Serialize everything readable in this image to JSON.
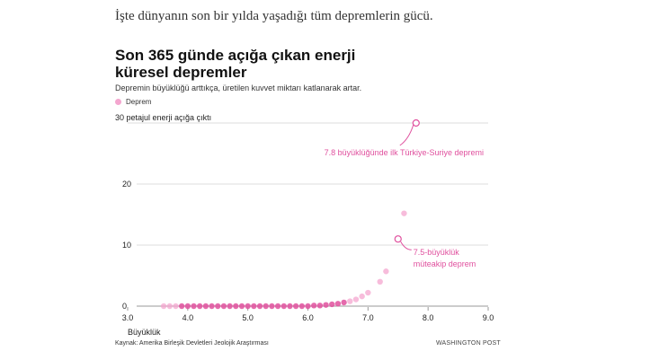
{
  "intro_text": "İşte dünyanın son bir yılda yaşadığı tüm depremlerin gücü.",
  "source": "Kaynak: Amerika Birleşik Devletleri Jeolojik Araştırması",
  "credit": "WASHINGTON POST",
  "colors": {
    "accent": "#e0509e",
    "point_light": "#f4a6cf",
    "grid": "#dddddd"
  },
  "chart_data": {
    "type": "scatter",
    "title": "Son 365 günde açığa çıkan enerji küresel depremler",
    "subtitle": "Depremin büyüklüğü arttıkça, üretilen kuvvet miktarı katlanarak artar.",
    "legend": [
      "Deprem"
    ],
    "xlabel": "Büyüklük",
    "ylabel_top": "30 petajul enerji açığa çıktı",
    "xlim": [
      3.0,
      9.0
    ],
    "ylim": [
      0,
      30
    ],
    "x_ticks": [
      "3.0",
      "4.0",
      "5.0",
      "6.0",
      "7.0",
      "8.0",
      "9.0"
    ],
    "y_ticks": [
      "0",
      "10",
      "20"
    ],
    "grid": true,
    "series": [
      {
        "name": "Deprem",
        "points": [
          [
            3.6,
            0
          ],
          [
            3.7,
            0
          ],
          [
            3.8,
            0
          ],
          [
            3.9,
            0
          ],
          [
            4.0,
            0
          ],
          [
            4.1,
            0
          ],
          [
            4.2,
            0
          ],
          [
            4.3,
            0
          ],
          [
            4.4,
            0
          ],
          [
            4.5,
            0
          ],
          [
            4.6,
            0
          ],
          [
            4.7,
            0
          ],
          [
            4.8,
            0
          ],
          [
            4.9,
            0
          ],
          [
            5.0,
            0
          ],
          [
            5.1,
            0
          ],
          [
            5.2,
            0
          ],
          [
            5.3,
            0
          ],
          [
            5.4,
            0
          ],
          [
            5.5,
            0
          ],
          [
            5.6,
            0
          ],
          [
            5.7,
            0
          ],
          [
            5.8,
            0
          ],
          [
            5.9,
            0
          ],
          [
            6.0,
            0
          ],
          [
            6.1,
            0.1
          ],
          [
            6.2,
            0.1
          ],
          [
            6.3,
            0.2
          ],
          [
            6.4,
            0.3
          ],
          [
            6.5,
            0.4
          ],
          [
            6.6,
            0.6
          ],
          [
            6.7,
            0.8
          ],
          [
            6.8,
            1.1
          ],
          [
            6.9,
            1.6
          ],
          [
            7.0,
            2.2
          ],
          [
            7.2,
            4.0
          ],
          [
            7.3,
            5.7
          ],
          [
            7.5,
            11.0
          ],
          [
            7.6,
            15.2
          ],
          [
            7.8,
            30.0
          ]
        ]
      }
    ],
    "annotations": [
      {
        "text": "7.8 büyüklüğünde ilk Türkiye-Suriye depremi",
        "x": 7.8,
        "y": 30.0
      },
      {
        "lines": [
          "7.5-büyüklük",
          "müteakip deprem"
        ],
        "x": 7.5,
        "y": 11.0
      }
    ]
  }
}
